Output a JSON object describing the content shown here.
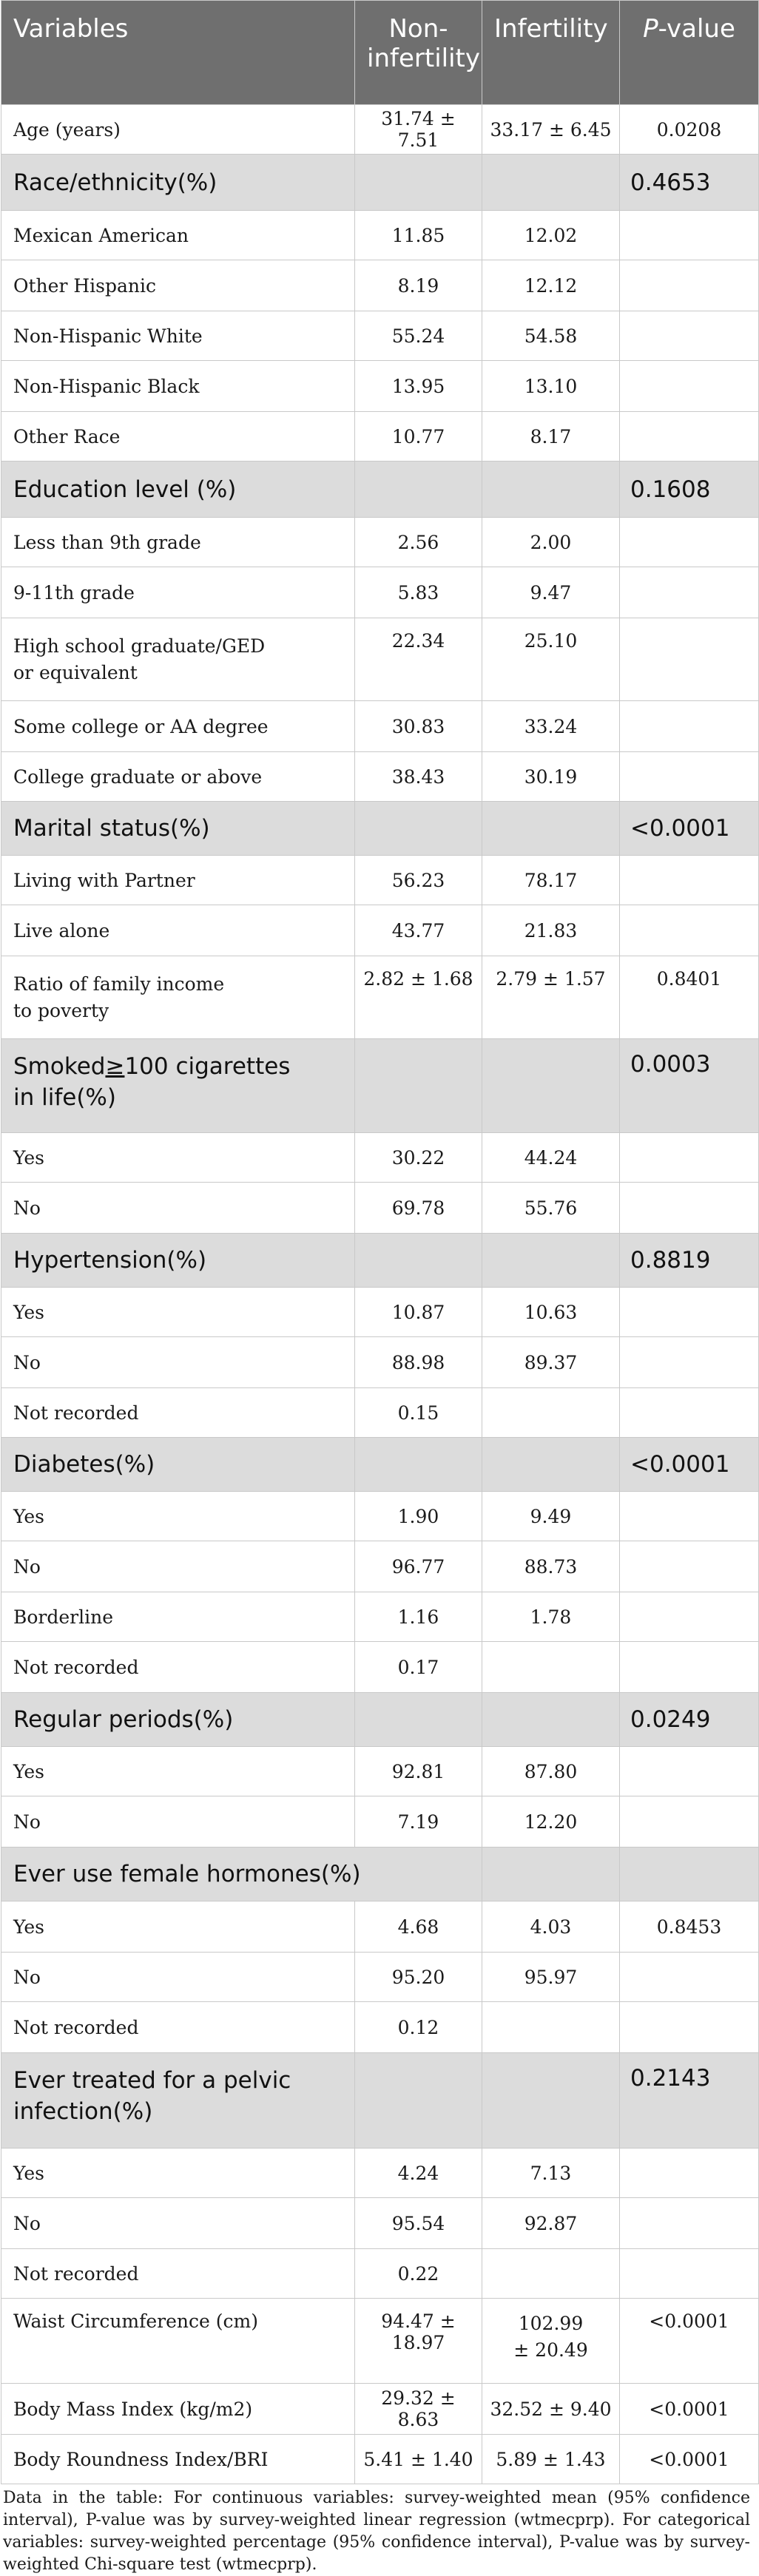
{
  "header": {
    "col1": "Variables",
    "col2": "Non-\ninfertility",
    "col2_line1": "Non-",
    "col2_line2": "infertility",
    "col3": "Infertility",
    "col4_italic": "P",
    "col4_rest": "-value"
  },
  "rows": {
    "age": {
      "label": "Age (years)",
      "non": "31.74 ± 7.51",
      "inf": "33.17 ± 6.45",
      "p": "0.0208"
    },
    "race": {
      "label": "Race/ethnicity(%)",
      "p": "0.4653"
    },
    "race_mexican": {
      "label": "Mexican American",
      "non": "11.85",
      "inf": "12.02"
    },
    "race_other_hisp": {
      "label": "Other Hispanic",
      "non": "8.19",
      "inf": "12.12"
    },
    "race_nh_white": {
      "label": "Non-Hispanic White",
      "non": "55.24",
      "inf": "54.58"
    },
    "race_nh_black": {
      "label": "Non-Hispanic Black",
      "non": "13.95",
      "inf": "13.10"
    },
    "race_other": {
      "label": "Other Race",
      "non": "10.77",
      "inf": "8.17"
    },
    "edu": {
      "label": "Education level (%)",
      "p": "0.1608"
    },
    "edu_lt9": {
      "label": "Less than 9th grade",
      "non": "2.56",
      "inf": "2.00"
    },
    "edu_9_11": {
      "label": "9-11th grade",
      "non": "5.83",
      "inf": "9.47"
    },
    "edu_hs_l1": "High school graduate/GED",
    "edu_hs_l2": "or equivalent",
    "edu_hs": {
      "non": "22.34",
      "inf": "25.10"
    },
    "edu_some": {
      "label": "Some college or AA degree",
      "non": "30.83",
      "inf": "33.24"
    },
    "edu_grad": {
      "label": "College graduate or above",
      "non": "38.43",
      "inf": "30.19"
    },
    "marital": {
      "label": "Marital status(%)",
      "p": "<0.0001"
    },
    "marital_partner": {
      "label": "Living with Partner",
      "non": "56.23",
      "inf": "78.17"
    },
    "marital_alone": {
      "label": "Live alone",
      "non": "43.77",
      "inf": "21.83"
    },
    "income_l1": "Ratio of family income",
    "income_l2": "to poverty",
    "income": {
      "non": "2.82 ± 1.68",
      "inf": "2.79 ± 1.57",
      "p": "0.8401"
    },
    "smoke_l1_a": "Smoked",
    "smoke_l1_b": "≥",
    "smoke_l1_c": "100 cigarettes",
    "smoke_l2": "in life(%)",
    "smoke": {
      "p": "0.0003"
    },
    "smoke_yes": {
      "label": "Yes",
      "non": "30.22",
      "inf": "44.24"
    },
    "smoke_no": {
      "label": "No",
      "non": "69.78",
      "inf": "55.76"
    },
    "htn": {
      "label": "Hypertension(%)",
      "p": "0.8819"
    },
    "htn_yes": {
      "label": "Yes",
      "non": "10.87",
      "inf": "10.63"
    },
    "htn_no": {
      "label": "No",
      "non": "88.98",
      "inf": "89.37"
    },
    "htn_nr": {
      "label": "Not recorded",
      "non": "0.15",
      "inf": ""
    },
    "diab": {
      "label": "Diabetes(%)",
      "p": "<0.0001"
    },
    "diab_yes": {
      "label": "Yes",
      "non": "1.90",
      "inf": "9.49"
    },
    "diab_no": {
      "label": "No",
      "non": "96.77",
      "inf": "88.73"
    },
    "diab_border": {
      "label": "Borderline",
      "non": "1.16",
      "inf": "1.78"
    },
    "diab_nr": {
      "label": "Not recorded",
      "non": "0.17",
      "inf": ""
    },
    "periods": {
      "label": "Regular periods(%)",
      "p": "0.0249"
    },
    "periods_yes": {
      "label": "Yes",
      "non": "92.81",
      "inf": "87.80"
    },
    "periods_no": {
      "label": "No",
      "non": "7.19",
      "inf": "12.20"
    },
    "horm": {
      "label": "Ever use female hormones(%)"
    },
    "horm_yes": {
      "label": "Yes",
      "non": "4.68",
      "inf": "4.03",
      "p": "0.8453"
    },
    "horm_no": {
      "label": "No",
      "non": "95.20",
      "inf": "95.97"
    },
    "horm_nr": {
      "label": "Not recorded",
      "non": "0.12",
      "inf": ""
    },
    "pelvic_l1": "Ever treated for a pelvic",
    "pelvic_l2": "infection(%)",
    "pelvic": {
      "p": "0.2143"
    },
    "pelvic_yes": {
      "label": "Yes",
      "non": "4.24",
      "inf": "7.13"
    },
    "pelvic_no": {
      "label": "No",
      "non": "95.54",
      "inf": "92.87"
    },
    "pelvic_nr": {
      "label": "Not recorded",
      "non": "0.22",
      "inf": ""
    },
    "waist": {
      "label": "Waist Circumference (cm)",
      "non": "94.47 ± 18.97",
      "inf_l1": "102.99",
      "inf_l2": "± 20.49",
      "p": "<0.0001"
    },
    "bmi": {
      "label": "Body Mass Index (kg/m2)",
      "non": "29.32 ± 8.63",
      "inf": "32.52 ± 9.40",
      "p": "<0.0001"
    },
    "bri": {
      "label": "Body Roundness Index/BRI",
      "non": "5.41 ± 1.40",
      "inf": "5.89 ± 1.43",
      "p": "<0.0001"
    }
  },
  "note": "Data in the table: For continuous variables: survey-weighted mean (95% confidence interval), P-value was by survey-weighted linear regression (wtmecprp). For categorical variables: survey-weighted percentage (95% confidence interval), P-value was by survey-weighted Chi-square test (wtmecprp)."
}
